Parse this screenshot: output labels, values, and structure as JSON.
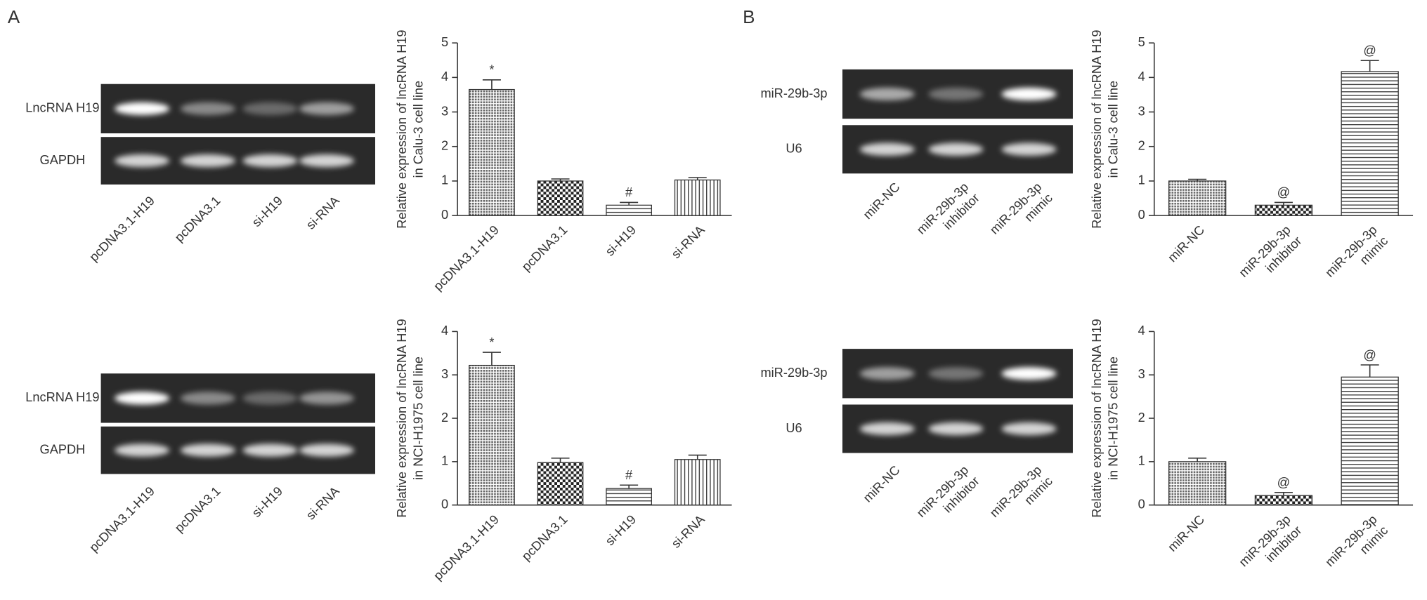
{
  "panel_labels": [
    "A",
    "B"
  ],
  "gels": [
    {
      "rows": [
        "LncRNA H19",
        "GAPDH"
      ],
      "lanes": [
        [
          "pcDNA3.1-H19"
        ],
        [
          "pcDNA3.1"
        ],
        [
          "si-H19"
        ],
        [
          "si-RNA"
        ]
      ]
    },
    {
      "rows": [
        "LncRNA H19",
        "GAPDH"
      ],
      "lanes": [
        [
          "pcDNA3.1-H19"
        ],
        [
          "pcDNA3.1"
        ],
        [
          "si-H19"
        ],
        [
          "si-RNA"
        ]
      ]
    },
    {
      "rows": [
        "miR-29b-3p",
        "U6"
      ],
      "lanes": [
        [
          "miR-NC"
        ],
        [
          "miR-29b-3p",
          "inhibitor"
        ],
        [
          "miR-29b-3p",
          "mimic"
        ]
      ]
    },
    {
      "rows": [
        "miR-29b-3p",
        "U6"
      ],
      "lanes": [
        [
          "miR-NC"
        ],
        [
          "miR-29b-3p",
          "inhibitor"
        ],
        [
          "miR-29b-3p",
          "mimic"
        ]
      ]
    }
  ],
  "chart_data": [
    {
      "type": "bar",
      "ylabel": [
        "Relative expression of lncRNA H19",
        "in Calu-3 cell line"
      ],
      "categories": [
        [
          "pcDNA3.1-H19"
        ],
        [
          "pcDNA3.1"
        ],
        [
          "si-H19"
        ],
        [
          "si-RNA"
        ]
      ],
      "values": [
        3.65,
        1.0,
        0.3,
        1.03
      ],
      "errors": [
        0.28,
        0.06,
        0.08,
        0.07
      ],
      "annotations": [
        "*",
        null,
        "#",
        null
      ],
      "patterns": [
        "dots",
        "checker",
        "hlines",
        "vlines"
      ],
      "ylim": [
        0,
        5
      ],
      "yticks": [
        0,
        1,
        2,
        3,
        4,
        5
      ]
    },
    {
      "type": "bar",
      "ylabel": [
        "Relative expression of lncRNA H19",
        "in NCI-H1975 cell line"
      ],
      "categories": [
        [
          "pcDNA3.1-H19"
        ],
        [
          "pcDNA3.1"
        ],
        [
          "si-H19"
        ],
        [
          "si-RNA"
        ]
      ],
      "values": [
        3.22,
        0.98,
        0.38,
        1.05
      ],
      "errors": [
        0.3,
        0.1,
        0.08,
        0.1
      ],
      "annotations": [
        "*",
        null,
        "#",
        null
      ],
      "patterns": [
        "dots",
        "checker",
        "hlines",
        "vlines"
      ],
      "ylim": [
        0,
        4
      ],
      "yticks": [
        0,
        1,
        2,
        3,
        4
      ]
    },
    {
      "type": "bar",
      "ylabel": [
        "Relative expression of lncRNA H19",
        "in Calu-3 cell line"
      ],
      "categories": [
        [
          "miR-NC"
        ],
        [
          "miR-29b-3p",
          "inhibitor"
        ],
        [
          "miR-29b-3p",
          "mimic"
        ]
      ],
      "values": [
        1.0,
        0.3,
        4.17
      ],
      "errors": [
        0.05,
        0.08,
        0.32
      ],
      "annotations": [
        null,
        "@",
        "@"
      ],
      "patterns": [
        "dots",
        "checker",
        "hlines"
      ],
      "ylim": [
        0,
        5
      ],
      "yticks": [
        0,
        1,
        2,
        3,
        4,
        5
      ]
    },
    {
      "type": "bar",
      "ylabel": [
        "Relative expression of lncRNA H19",
        "in NCI-H1975 cell line"
      ],
      "categories": [
        [
          "miR-NC"
        ],
        [
          "miR-29b-3p",
          "inhibitor"
        ],
        [
          "miR-29b-3p",
          "mimic"
        ]
      ],
      "values": [
        1.0,
        0.22,
        2.95
      ],
      "errors": [
        0.08,
        0.07,
        0.28
      ],
      "annotations": [
        null,
        "@",
        "@"
      ],
      "patterns": [
        "dots",
        "checker",
        "hlines"
      ],
      "ylim": [
        0,
        4
      ],
      "yticks": [
        0,
        1,
        2,
        3,
        4
      ]
    }
  ]
}
